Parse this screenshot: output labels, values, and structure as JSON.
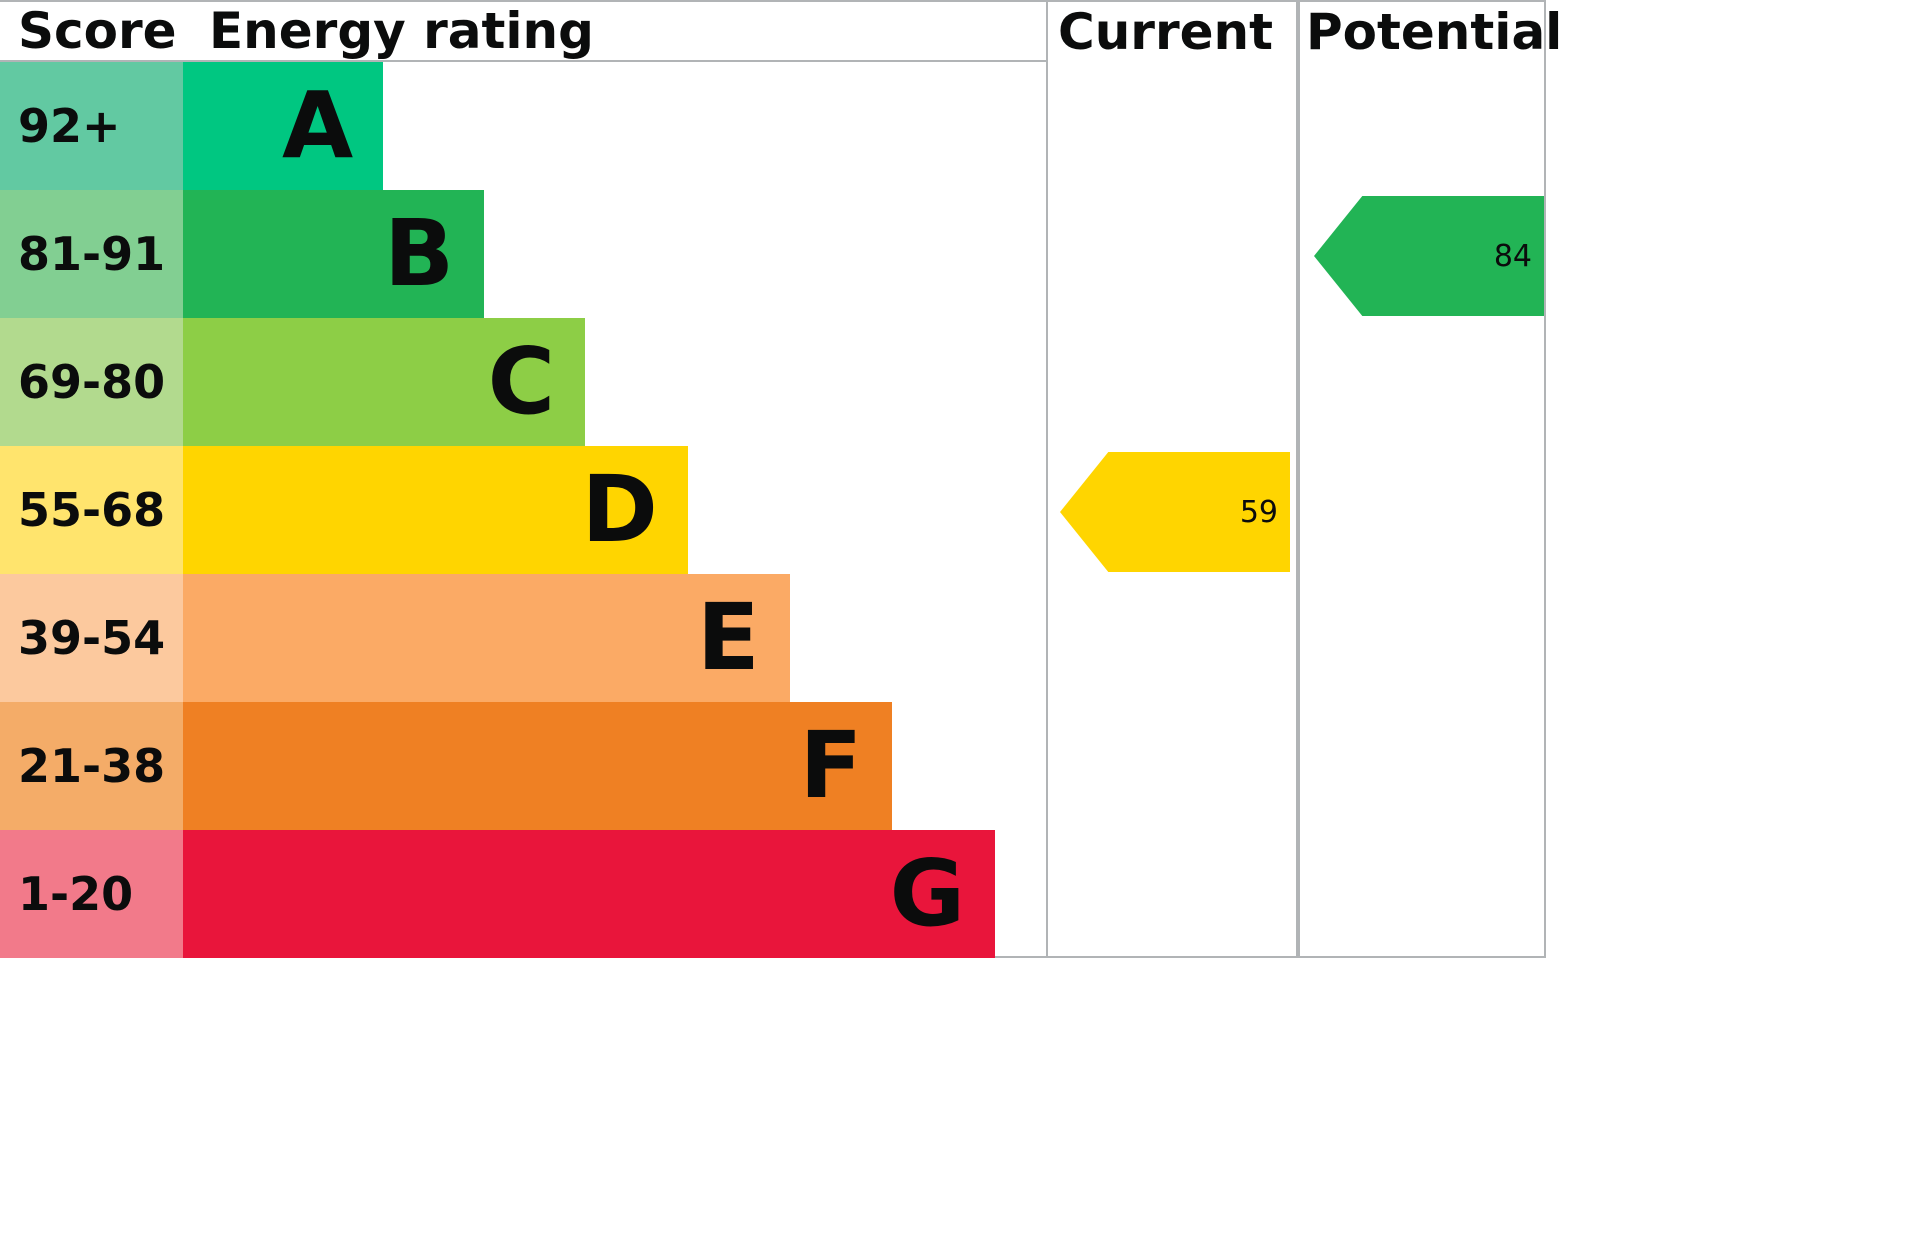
{
  "header": {
    "score": "Score",
    "rating": "Energy rating",
    "current": "Current",
    "potential": "Potential"
  },
  "bands": [
    {
      "score": "92+",
      "letter": "A",
      "bar_color": "#00c781",
      "cell_color": "#62c9a2",
      "bar_width_pct": 23.2
    },
    {
      "score": "81-91",
      "letter": "B",
      "bar_color": "#22b455",
      "cell_color": "#82cf92",
      "bar_width_pct": 34.9
    },
    {
      "score": "69-80",
      "letter": "C",
      "bar_color": "#8dce46",
      "cell_color": "#b2da8e",
      "bar_width_pct": 46.6
    },
    {
      "score": "55-68",
      "letter": "D",
      "bar_color": "#ffd500",
      "cell_color": "#ffe46d",
      "bar_width_pct": 58.5
    },
    {
      "score": "39-54",
      "letter": "E",
      "bar_color": "#fbaa65",
      "cell_color": "#fcc99e",
      "bar_width_pct": 70.3
    },
    {
      "score": "21-38",
      "letter": "F",
      "bar_color": "#ef8023",
      "cell_color": "#f4ac68",
      "bar_width_pct": 82.2
    },
    {
      "score": "1-20",
      "letter": "G",
      "bar_color": "#e9153b",
      "cell_color": "#f27a8a",
      "bar_width_pct": 94.1
    }
  ],
  "markers": {
    "current": {
      "value": "59",
      "band": "D",
      "row_index": 3,
      "color": "#ffd500"
    },
    "potential": {
      "value": "84",
      "band": "B",
      "row_index": 1,
      "color": "#22b455"
    }
  },
  "border_color": "#b1b4b6",
  "chart_data": {
    "type": "bar",
    "title": "Energy rating",
    "categories": [
      "A",
      "B",
      "C",
      "D",
      "E",
      "F",
      "G"
    ],
    "score_ranges": [
      "92+",
      "81-91",
      "69-80",
      "55-68",
      "39-54",
      "21-38",
      "1-20"
    ],
    "band_colors": [
      "#00c781",
      "#22b455",
      "#8dce46",
      "#ffd500",
      "#fbaa65",
      "#ef8023",
      "#e9153b"
    ],
    "current": {
      "value": 59,
      "band": "D"
    },
    "potential": {
      "value": 84,
      "band": "B"
    },
    "legend_position": "none",
    "grid": false
  }
}
